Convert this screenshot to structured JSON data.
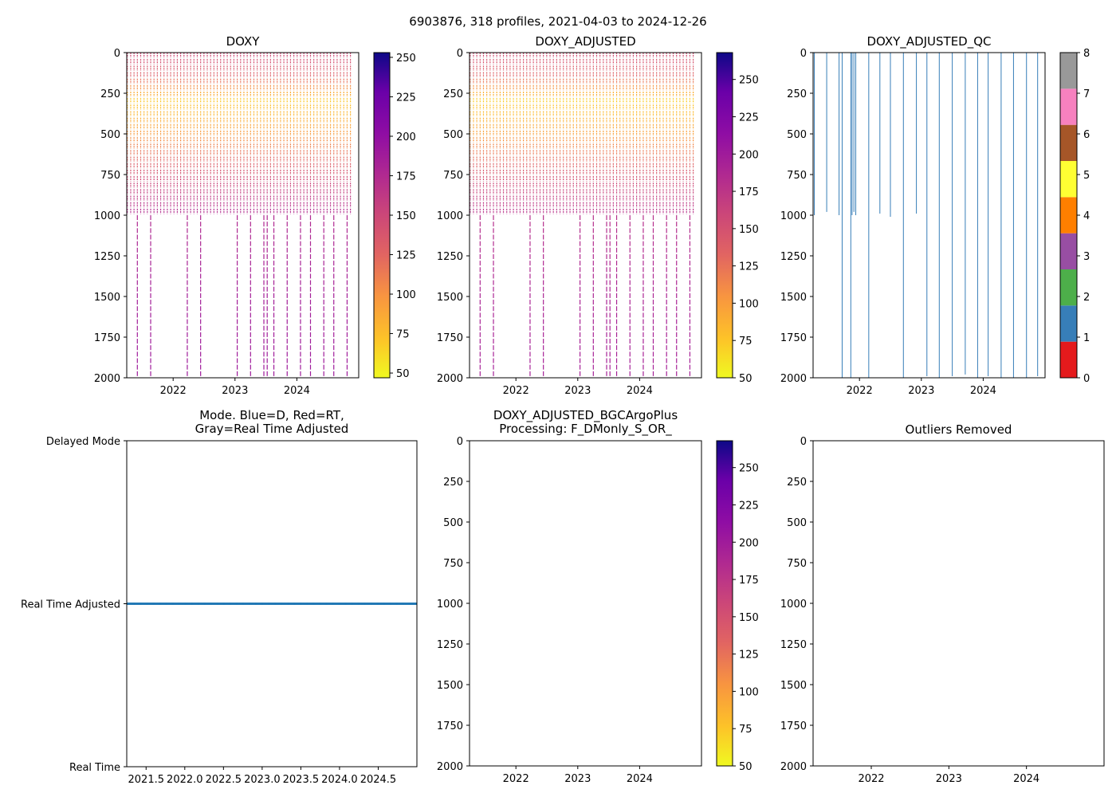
{
  "figure": {
    "suptitle": "6903876, 318 profiles, 2021-04-03 to 2024-12-26"
  },
  "chart_data": [
    {
      "id": "doxy",
      "type": "heatmap",
      "title": "DOXY",
      "xlim": [
        2021.25,
        2025.0
      ],
      "ylim": [
        2000,
        0
      ],
      "x_ticks": [
        2022,
        2023,
        2024
      ],
      "x_ticklabels": [
        "2022",
        "2023",
        "2024"
      ],
      "y_ticks": [
        0,
        250,
        500,
        750,
        1000,
        1250,
        1500,
        1750,
        2000
      ],
      "y_ticklabels": [
        "0",
        "250",
        "500",
        "750",
        "1000",
        "1250",
        "1500",
        "1750",
        "2000"
      ],
      "colorbar": {
        "cmap": "plasma_r",
        "range": [
          47,
          253
        ],
        "ticks": [
          50,
          75,
          100,
          125,
          150,
          175,
          200,
          225,
          250
        ],
        "ticklabels": [
          "50",
          "75",
          "100",
          "125",
          "150",
          "175",
          "200",
          "225",
          "250"
        ]
      },
      "deep_profiles": [
        2021.42,
        2021.63,
        2022.24,
        2022.44,
        2023.02,
        2023.23,
        2023.45,
        2023.52,
        2023.63,
        2023.83,
        2024.05,
        2024.22,
        2024.42,
        2024.62,
        2024.8
      ],
      "shallow_max_depth": 1000,
      "value_by_depth": [
        {
          "depth": 0,
          "value": 150
        },
        {
          "depth": 150,
          "value": 130
        },
        {
          "depth": 300,
          "value": 70
        },
        {
          "depth": 500,
          "value": 95
        },
        {
          "depth": 800,
          "value": 150
        },
        {
          "depth": 1000,
          "value": 175
        },
        {
          "depth": 1500,
          "value": 185
        },
        {
          "depth": 2000,
          "value": 190
        }
      ]
    },
    {
      "id": "doxy-adjusted",
      "type": "heatmap",
      "title": "DOXY_ADJUSTED",
      "xlim": [
        2021.25,
        2025.0
      ],
      "ylim": [
        2000,
        0
      ],
      "x_ticks": [
        2022,
        2023,
        2024
      ],
      "x_ticklabels": [
        "2022",
        "2023",
        "2024"
      ],
      "y_ticks": [
        0,
        250,
        500,
        750,
        1000,
        1250,
        1500,
        1750,
        2000
      ],
      "y_ticklabels": [
        "0",
        "250",
        "500",
        "750",
        "1000",
        "1250",
        "1500",
        "1750",
        "2000"
      ],
      "colorbar": {
        "cmap": "plasma_r",
        "range": [
          50,
          268
        ],
        "ticks": [
          50,
          75,
          100,
          125,
          150,
          175,
          200,
          225,
          250
        ],
        "ticklabels": [
          "50",
          "75",
          "100",
          "125",
          "150",
          "175",
          "200",
          "225",
          "250"
        ]
      },
      "deep_profiles": [
        2021.42,
        2021.63,
        2022.24,
        2022.44,
        2023.02,
        2023.23,
        2023.45,
        2023.52,
        2023.63,
        2023.83,
        2024.05,
        2024.22,
        2024.42,
        2024.62,
        2024.8
      ],
      "shallow_max_depth": 1000,
      "value_by_depth": [
        {
          "depth": 0,
          "value": 155
        },
        {
          "depth": 150,
          "value": 135
        },
        {
          "depth": 300,
          "value": 72
        },
        {
          "depth": 500,
          "value": 98
        },
        {
          "depth": 800,
          "value": 155
        },
        {
          "depth": 1000,
          "value": 180
        },
        {
          "depth": 1500,
          "value": 190
        },
        {
          "depth": 2000,
          "value": 195
        }
      ]
    },
    {
      "id": "doxy-adjusted-qc",
      "type": "heatmap",
      "title": "DOXY_ADJUSTED_QC",
      "xlim": [
        2021.25,
        2025.0
      ],
      "ylim": [
        2000,
        0
      ],
      "x_ticks": [
        2022,
        2023,
        2024
      ],
      "x_ticklabels": [
        "2022",
        "2023",
        "2024"
      ],
      "y_ticks": [
        0,
        250,
        500,
        750,
        1000,
        1250,
        1500,
        1750,
        2000
      ],
      "y_ticklabels": [
        "0",
        "250",
        "500",
        "750",
        "1000",
        "1250",
        "1500",
        "1750",
        "2000"
      ],
      "colorbar": {
        "cmap": "Set1",
        "range": [
          0,
          8
        ],
        "ticks": [
          0,
          1,
          2,
          3,
          4,
          5,
          6,
          7,
          8
        ],
        "ticklabels": [
          "0",
          "1",
          "2",
          "3",
          "4",
          "5",
          "6",
          "7",
          "8"
        ],
        "classes": [
          "#e41a1c",
          "#377eb8",
          "#4daf4a",
          "#984ea3",
          "#ff7f00",
          "#ffff33",
          "#a65628",
          "#f781bf",
          "#999999"
        ]
      },
      "qc_lines": [
        {
          "x": 2021.27,
          "depth": 1000
        },
        {
          "x": 2021.47,
          "depth": 980
        },
        {
          "x": 2021.67,
          "depth": 1000
        },
        {
          "x": 2021.72,
          "depth": 2000
        },
        {
          "x": 2021.86,
          "depth": 2000
        },
        {
          "x": 2021.88,
          "depth": 1000
        },
        {
          "x": 2021.91,
          "depth": 980
        },
        {
          "x": 2021.94,
          "depth": 1000
        },
        {
          "x": 2022.15,
          "depth": 2000
        },
        {
          "x": 2022.33,
          "depth": 990
        },
        {
          "x": 2022.5,
          "depth": 1010
        },
        {
          "x": 2022.71,
          "depth": 2000
        },
        {
          "x": 2022.92,
          "depth": 990
        },
        {
          "x": 2023.09,
          "depth": 1990
        },
        {
          "x": 2023.29,
          "depth": 2000
        },
        {
          "x": 2023.5,
          "depth": 1990
        },
        {
          "x": 2023.71,
          "depth": 1980
        },
        {
          "x": 2023.91,
          "depth": 2000
        },
        {
          "x": 2024.08,
          "depth": 1990
        },
        {
          "x": 2024.29,
          "depth": 2000
        },
        {
          "x": 2024.49,
          "depth": 2000
        },
        {
          "x": 2024.7,
          "depth": 2000
        },
        {
          "x": 2024.88,
          "depth": 1990
        }
      ],
      "qc_value": 1
    },
    {
      "id": "mode",
      "type": "scatter",
      "title": "Mode. Blue=D, Red=RT,",
      "title_line2": "Gray=Real Time Adjusted",
      "xlim": [
        2021.25,
        2025.0
      ],
      "x_ticks": [
        2021.5,
        2022.0,
        2022.5,
        2023.0,
        2023.5,
        2024.0,
        2024.5
      ],
      "x_ticklabels": [
        "2021.5",
        "2022.0",
        "2022.5",
        "2023.0",
        "2023.5",
        "2024.0",
        "2024.5"
      ],
      "y_categories": [
        "Real Time",
        "Real Time Adjusted",
        "Delayed Mode"
      ],
      "series": [
        {
          "name": "Real Time Adjusted",
          "y": "Real Time Adjusted",
          "x_start": 2021.26,
          "x_end": 2024.99,
          "count": 318,
          "color": "#1f77b4"
        }
      ]
    },
    {
      "id": "doxy-bgcargoplus",
      "type": "heatmap",
      "title": "DOXY_ADJUSTED_BGCArgoPlus",
      "title_line2": "Processing: F_DMonly_S_OR_",
      "xlim": [
        2021.25,
        2025.0
      ],
      "ylim": [
        2000,
        0
      ],
      "x_ticks": [
        2022,
        2023,
        2024
      ],
      "x_ticklabels": [
        "2022",
        "2023",
        "2024"
      ],
      "y_ticks": [
        0,
        250,
        500,
        750,
        1000,
        1250,
        1500,
        1750,
        2000
      ],
      "y_ticklabels": [
        "0",
        "250",
        "500",
        "750",
        "1000",
        "1250",
        "1500",
        "1750",
        "2000"
      ],
      "colorbar": {
        "cmap": "plasma_r",
        "range": [
          50,
          268
        ],
        "ticks": [
          50,
          75,
          100,
          125,
          150,
          175,
          200,
          225,
          250
        ],
        "ticklabels": [
          "50",
          "75",
          "100",
          "125",
          "150",
          "175",
          "200",
          "225",
          "250"
        ]
      },
      "values": []
    },
    {
      "id": "outliers-removed",
      "type": "scatter",
      "title": "Outliers Removed",
      "xlim": [
        2021.25,
        2025.0
      ],
      "ylim": [
        2000,
        0
      ],
      "x_ticks": [
        2022,
        2023,
        2024
      ],
      "x_ticklabels": [
        "2022",
        "2023",
        "2024"
      ],
      "y_ticks": [
        0,
        250,
        500,
        750,
        1000,
        1250,
        1500,
        1750,
        2000
      ],
      "y_ticklabels": [
        "0",
        "250",
        "500",
        "750",
        "1000",
        "1250",
        "1500",
        "1750",
        "2000"
      ],
      "values": []
    }
  ]
}
